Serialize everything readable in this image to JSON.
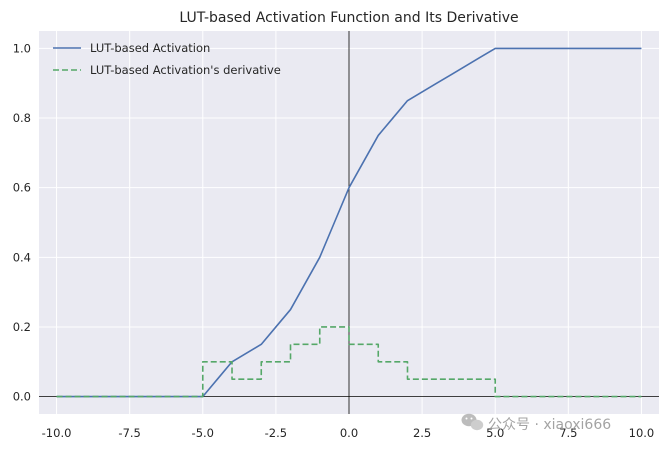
{
  "chart_data": {
    "type": "line",
    "title": "LUT-based Activation Function and Its Derivative",
    "xlabel": "",
    "ylabel": "",
    "xlim": [
      -10.6,
      10.6
    ],
    "ylim": [
      -0.05,
      1.05
    ],
    "grid": true,
    "legend_position": "top-left",
    "x_ticks": [
      -10.0,
      -7.5,
      -5.0,
      -2.5,
      0.0,
      2.5,
      5.0,
      7.5,
      10.0
    ],
    "x_tick_labels": [
      "-10.0",
      "-7.5",
      "-5.0",
      "-2.5",
      "0.0",
      "2.5",
      "5.0",
      "7.5",
      "10.0"
    ],
    "y_ticks": [
      0.0,
      0.2,
      0.4,
      0.6,
      0.8,
      1.0
    ],
    "y_tick_labels": [
      "0.0",
      "0.2",
      "0.4",
      "0.6",
      "0.8",
      "1.0"
    ],
    "series": [
      {
        "name": "LUT-based Activation",
        "style": "solid",
        "color": "#4c72b0",
        "x": [
          -10,
          -5,
          -4.5,
          -4,
          -3.5,
          -3,
          -2.5,
          -2,
          -1.5,
          -1,
          -0.5,
          0,
          0.5,
          1,
          1.5,
          2,
          2.5,
          3,
          3.5,
          4,
          4.5,
          5,
          5.5,
          10
        ],
        "y": [
          0,
          0,
          0.05,
          0.1,
          0.125,
          0.15,
          0.2,
          0.25,
          0.325,
          0.4,
          0.5,
          0.6,
          0.675,
          0.75,
          0.8,
          0.85,
          0.875,
          0.9,
          0.925,
          0.95,
          0.975,
          1.0,
          1.0,
          1.0
        ]
      },
      {
        "name": "LUT-based Activation's derivative",
        "style": "dashed",
        "color": "#55a868",
        "x": [
          -10,
          -5,
          -5,
          -4,
          -4,
          -3,
          -3,
          -2,
          -2,
          -1,
          -1,
          0,
          0,
          1,
          1,
          2,
          2,
          5,
          5,
          10
        ],
        "y": [
          0,
          0,
          0.1,
          0.1,
          0.05,
          0.05,
          0.1,
          0.1,
          0.15,
          0.15,
          0.2,
          0.2,
          0.15,
          0.15,
          0.1,
          0.1,
          0.05,
          0.05,
          0,
          0
        ]
      }
    ],
    "reference_lines": {
      "x": 0,
      "y": 0,
      "color": "#000000"
    },
    "colors": {
      "background": "#eaeaf2",
      "grid": "#ffffff",
      "activation": "#4c72b0",
      "derivative": "#55a868"
    }
  },
  "watermark": {
    "icon": "wechat-icon",
    "text": "公众号 · xiaoxi666"
  }
}
